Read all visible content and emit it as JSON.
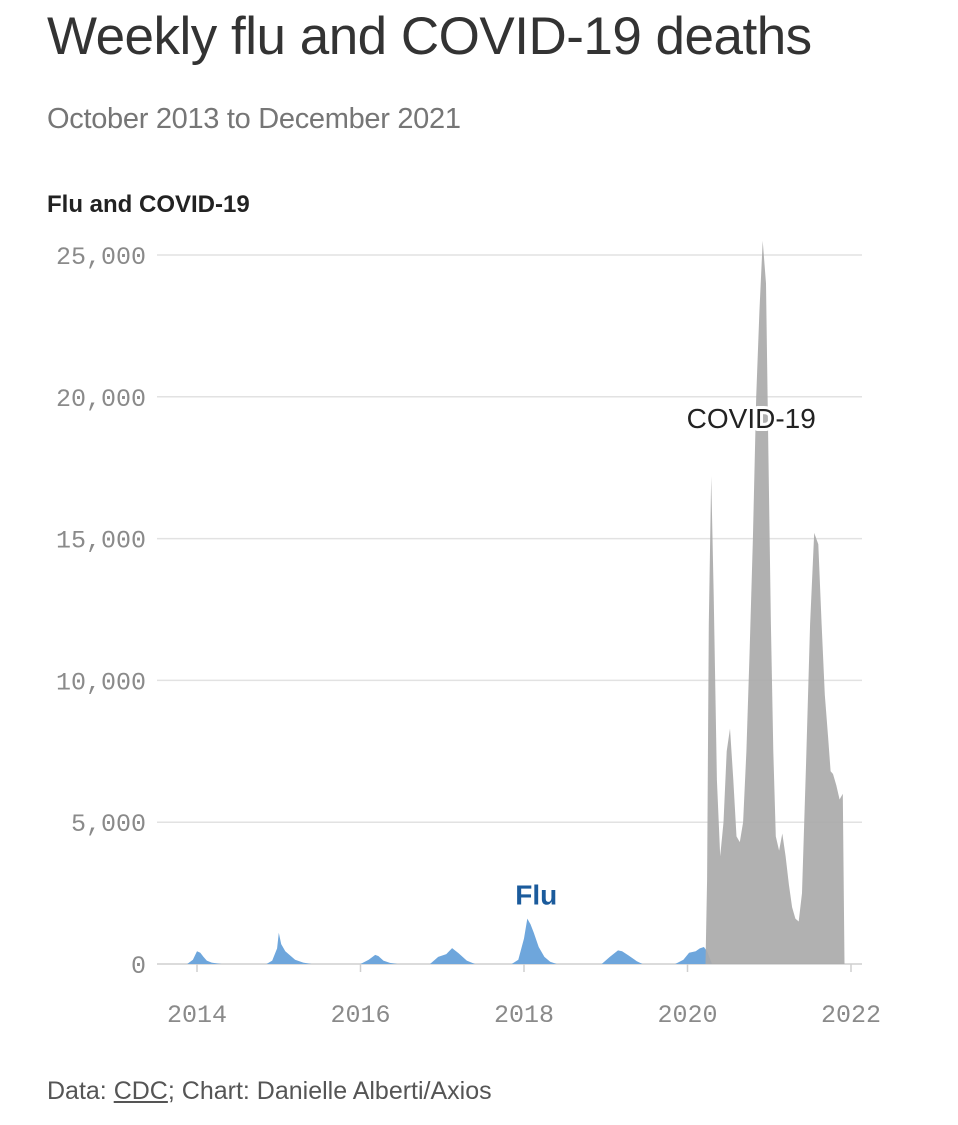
{
  "header": {
    "title": "Weekly flu and COVID-19 deaths",
    "subtitle": "October 2013 to December 2021"
  },
  "chart_data": {
    "type": "area",
    "ylabel": "Flu and COVID-19",
    "ylim": [
      0,
      25000
    ],
    "xlim": [
      "2013-10",
      "2021-12"
    ],
    "y_ticks": [
      {
        "value": 0,
        "label": "0"
      },
      {
        "value": 5000,
        "label": "5,000"
      },
      {
        "value": 10000,
        "label": "10,000"
      },
      {
        "value": 15000,
        "label": "15,000"
      },
      {
        "value": 20000,
        "label": "20,000"
      },
      {
        "value": 25000,
        "label": "25,000"
      }
    ],
    "x_ticks": [
      {
        "value": 2014,
        "label": "2014"
      },
      {
        "value": 2016,
        "label": "2016"
      },
      {
        "value": 2018,
        "label": "2018"
      },
      {
        "value": 2020,
        "label": "2020"
      },
      {
        "value": 2022,
        "label": "2022"
      }
    ],
    "grid": true,
    "series": [
      {
        "name": "Flu",
        "color": "#6ea6dc",
        "x": [
          2013.88,
          2013.95,
          2014.0,
          2014.04,
          2014.08,
          2014.12,
          2014.18,
          2014.24,
          2014.3,
          2014.85,
          2014.92,
          2014.98,
          2015.0,
          2015.03,
          2015.08,
          2015.14,
          2015.2,
          2015.3,
          2015.4,
          2016.0,
          2016.1,
          2016.18,
          2016.22,
          2016.28,
          2016.36,
          2016.45,
          2016.85,
          2016.95,
          2017.05,
          2017.12,
          2017.2,
          2017.3,
          2017.4,
          2017.85,
          2017.93,
          2018.0,
          2018.04,
          2018.08,
          2018.12,
          2018.18,
          2018.25,
          2018.32,
          2018.4,
          2018.95,
          2019.05,
          2019.15,
          2019.2,
          2019.28,
          2019.38,
          2019.45,
          2019.85,
          2019.95,
          2020.02,
          2020.1,
          2020.15,
          2020.2,
          2020.24,
          2020.3
        ],
        "y": [
          0,
          150,
          450,
          400,
          250,
          120,
          50,
          20,
          0,
          0,
          120,
          550,
          1100,
          700,
          450,
          300,
          150,
          50,
          0,
          0,
          150,
          320,
          280,
          120,
          40,
          0,
          0,
          250,
          350,
          560,
          380,
          120,
          0,
          0,
          150,
          900,
          1600,
          1400,
          1100,
          600,
          250,
          80,
          0,
          0,
          250,
          480,
          450,
          300,
          100,
          0,
          0,
          150,
          400,
          450,
          550,
          600,
          450,
          0
        ]
      },
      {
        "name": "COVID-19",
        "color": "#aaaaaa",
        "x": [
          2020.22,
          2020.24,
          2020.26,
          2020.29,
          2020.32,
          2020.36,
          2020.4,
          2020.44,
          2020.48,
          2020.52,
          2020.56,
          2020.6,
          2020.64,
          2020.68,
          2020.72,
          2020.76,
          2020.8,
          2020.84,
          2020.88,
          2020.92,
          2020.96,
          2020.99,
          2021.02,
          2021.05,
          2021.08,
          2021.12,
          2021.16,
          2021.2,
          2021.24,
          2021.28,
          2021.32,
          2021.36,
          2021.4,
          2021.45,
          2021.5,
          2021.55,
          2021.6,
          2021.64,
          2021.68,
          2021.72,
          2021.75,
          2021.78,
          2021.82,
          2021.86,
          2021.9,
          2021.92
        ],
        "y": [
          0,
          3000,
          12000,
          17200,
          13000,
          6500,
          3800,
          5000,
          7500,
          8300,
          6500,
          4500,
          4300,
          5000,
          7500,
          11000,
          15000,
          20000,
          23000,
          25500,
          24000,
          18000,
          12000,
          7500,
          4500,
          4000,
          4600,
          3800,
          2800,
          2000,
          1600,
          1500,
          2500,
          7000,
          12000,
          15200,
          14800,
          12000,
          9500,
          8000,
          6800,
          6700,
          6300,
          5800,
          6000,
          0
        ]
      }
    ],
    "annotations": [
      {
        "text": "COVID-19",
        "x": 2020.78,
        "y": 18900
      },
      {
        "text": "Flu",
        "x": 2018.15,
        "y": 2100
      }
    ]
  },
  "footer": {
    "data_prefix": "Data: ",
    "data_source": "CDC",
    "credit": "; Chart: Danielle Alberti/Axios"
  }
}
